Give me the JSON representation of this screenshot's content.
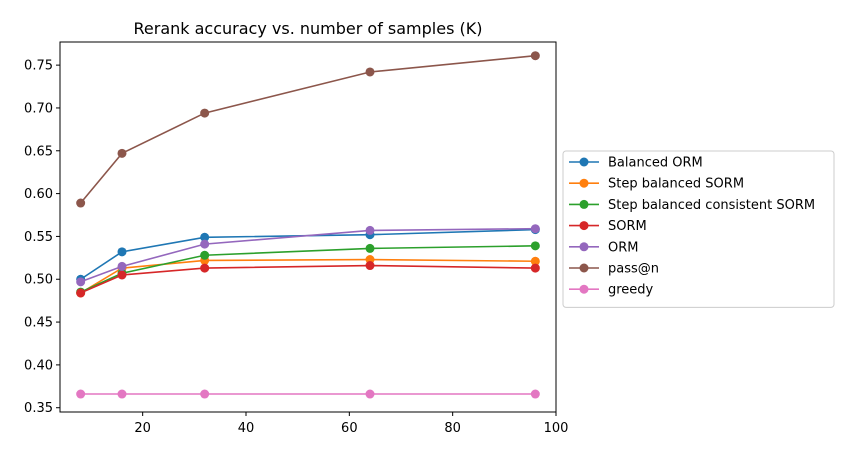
{
  "chart_data": {
    "type": "line",
    "title": "Rerank accuracy vs. number of samples (K)",
    "xlabel": "",
    "ylabel": "",
    "xlim": [
      4,
      100
    ],
    "ylim": [
      0.345,
      0.777
    ],
    "x_ticks": [
      20,
      40,
      60,
      80,
      100
    ],
    "y_ticks": [
      0.35,
      0.4,
      0.45,
      0.5,
      0.55,
      0.6,
      0.65,
      0.7,
      0.75
    ],
    "x_tick_labels": [
      "20",
      "40",
      "60",
      "80",
      "100"
    ],
    "y_tick_labels": [
      "0.35",
      "0.40",
      "0.45",
      "0.50",
      "0.55",
      "0.60",
      "0.65",
      "0.70",
      "0.75"
    ],
    "x": [
      8,
      16,
      32,
      64,
      96
    ],
    "grid": false,
    "legend_position": "outside-right",
    "series": [
      {
        "name": "Balanced ORM",
        "color": "#1f77b4",
        "values": [
          0.5,
          0.532,
          0.549,
          0.552,
          0.558
        ]
      },
      {
        "name": "Step balanced SORM",
        "color": "#ff7f0e",
        "values": [
          0.484,
          0.513,
          0.522,
          0.523,
          0.521
        ]
      },
      {
        "name": "Step balanced consistent SORM",
        "color": "#2ca02c",
        "values": [
          0.485,
          0.507,
          0.528,
          0.536,
          0.539
        ]
      },
      {
        "name": "SORM",
        "color": "#d62728",
        "values": [
          0.484,
          0.505,
          0.513,
          0.516,
          0.513
        ]
      },
      {
        "name": "ORM",
        "color": "#9467bd",
        "values": [
          0.497,
          0.515,
          0.541,
          0.557,
          0.559
        ]
      },
      {
        "name": "pass@n",
        "color": "#8c564b",
        "values": [
          0.589,
          0.647,
          0.694,
          0.742,
          0.761
        ]
      },
      {
        "name": "greedy",
        "color": "#e377c2",
        "values": [
          0.366,
          0.366,
          0.366,
          0.366,
          0.366
        ]
      }
    ]
  }
}
